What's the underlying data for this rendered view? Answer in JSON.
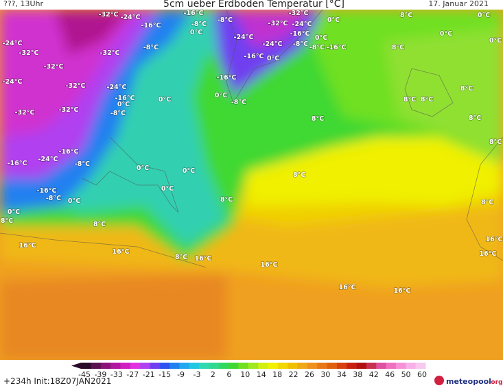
{
  "header": {
    "left": "???, 13Uhr",
    "title": "5cm ueber Erdboden Temperatur [°C]",
    "date": "17. Januar 2021"
  },
  "contour_labels": [
    "-32°C",
    "-24°C",
    "-16°C",
    "-16°C",
    "-8°C",
    "-8°C",
    "0°C",
    "-32°C",
    "-32°C",
    "-24°C",
    "0°C",
    "-16°C",
    "0°C",
    "-24°C",
    "-24°C",
    "-8°C",
    "-8°C",
    "-16°C",
    "-16°C",
    "0°C",
    "-24°C",
    "-32°C",
    "-32°C",
    "-8°C",
    "-32°C",
    "-32°C",
    "-24°C",
    "-24°C",
    "-16°C",
    "0°C",
    "-8°C",
    "-16°C",
    "0°C",
    "0°C",
    "-8°C",
    "-32°C",
    "-32°C",
    "8°C",
    "8°C",
    "8°C",
    "0°C",
    "0°C",
    "0°C",
    "8°C",
    "8°C",
    "8°C",
    "8°C",
    "8°C",
    "-16°C",
    "-24°C",
    "-16°C",
    "-8°C",
    "0°C",
    "0°C",
    "8°C",
    "-16°C",
    "-8°C",
    "0°C",
    "0°C",
    "8°C",
    "0°C",
    "8°C",
    "8°C",
    "8°C",
    "16°C",
    "16°C",
    "16°C",
    "8°C",
    "16°C",
    "16°C",
    "16°C",
    "16°C",
    "16°C"
  ],
  "colorbar": {
    "ticks": [
      -45,
      -39,
      -33,
      -27,
      -21,
      -15,
      -9,
      -3,
      2,
      6,
      10,
      14,
      18,
      22,
      26,
      30,
      34,
      38,
      42,
      46,
      50,
      60
    ],
    "colors": [
      "#2a0a2a",
      "#5a1050",
      "#8a1478",
      "#b018a0",
      "#d020c0",
      "#e030e0",
      "#b040f0",
      "#7040f0",
      "#3050f0",
      "#2080f0",
      "#20a8f0",
      "#20c8e0",
      "#30d8b0",
      "#30d890",
      "#30d860",
      "#40d830",
      "#70e020",
      "#a0e820",
      "#d0f010",
      "#f0f000",
      "#f0d800",
      "#f0c000",
      "#f0a818",
      "#f09020",
      "#e87818",
      "#e06010",
      "#d84010",
      "#c82010",
      "#b01010",
      "#c83050",
      "#e050a0",
      "#f070c0",
      "#f890d8",
      "#f8b0e8",
      "#f8c8f0"
    ]
  },
  "footer": {
    "run": "+234h  Init:18Z07JAN2021",
    "logo": "meteopool",
    "logo_suffix": ".org"
  }
}
